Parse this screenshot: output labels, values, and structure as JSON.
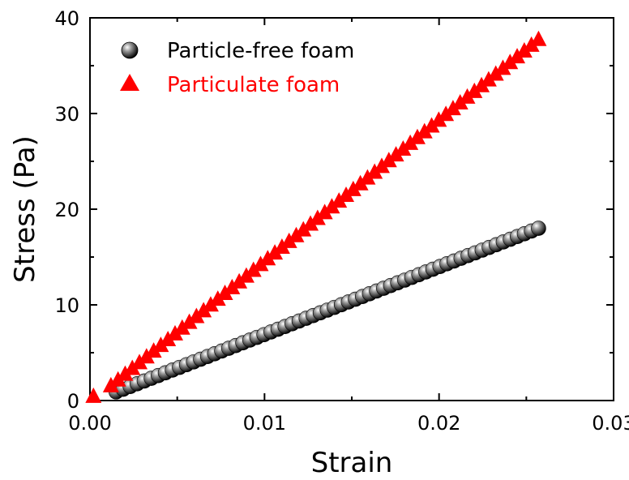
{
  "chart_data": {
    "type": "scatter",
    "xlabel": "Strain",
    "ylabel": "Stress (Pa)",
    "xlim": [
      0,
      0.03
    ],
    "ylim": [
      0,
      40
    ],
    "x_ticks": [
      "0.00",
      "0.01",
      "0.02",
      "0.03"
    ],
    "y_ticks": [
      "0",
      "10",
      "20",
      "30",
      "40"
    ],
    "legend_position": "top-left",
    "grid": false,
    "series": [
      {
        "name": "Particle-free foam",
        "marker": "sphere",
        "color": "#000000",
        "x_start": 0.0015,
        "x_end": 0.0257,
        "y_start": 0.9,
        "y_end": 18.0,
        "points": 61
      },
      {
        "name": "Particulate foam",
        "marker": "triangle",
        "color": "#ff0000",
        "points_extra": [
          [
            0.0002,
            0.4
          ]
        ],
        "x_start": 0.0012,
        "x_end": 0.0257,
        "y_start": 1.5,
        "y_end": 37.7,
        "points": 61
      }
    ]
  }
}
